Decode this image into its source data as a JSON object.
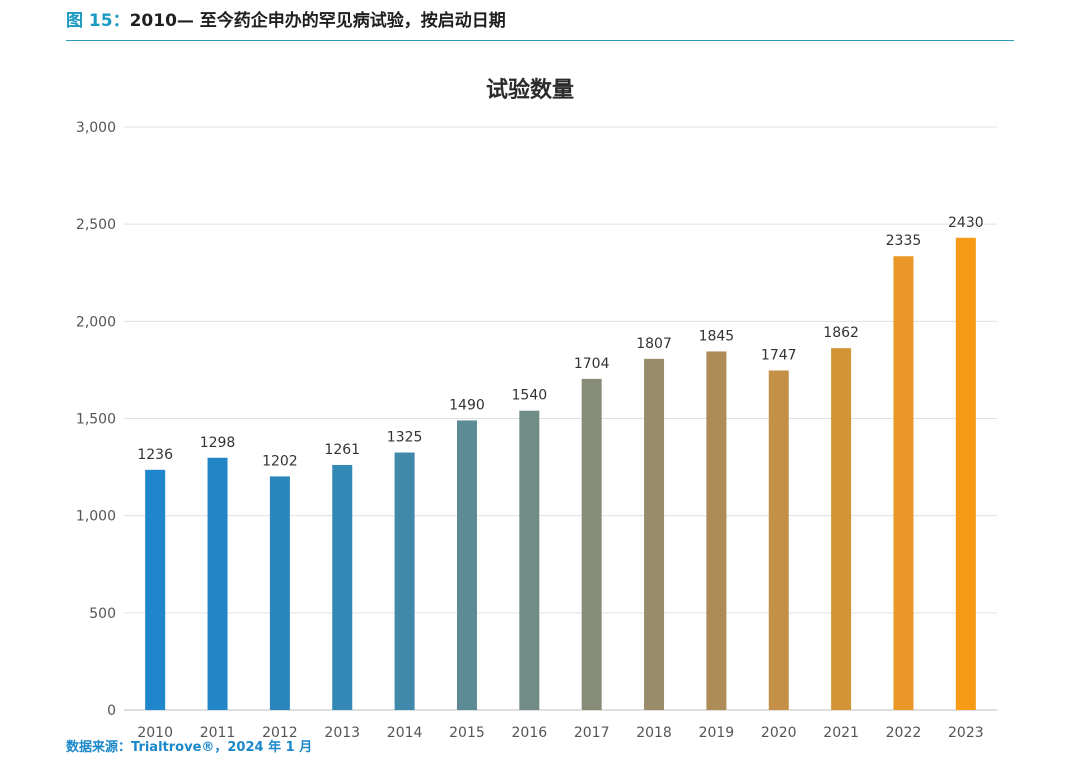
{
  "header": {
    "figure_label": "图 15：",
    "title": "2010— 至今药企申办的罕见病试验，按启动日期"
  },
  "source": "数据来源：Trialtrove®，2024 年 1 月",
  "chart_data": {
    "type": "bar",
    "title": "试验数量",
    "categories": [
      "2010",
      "2011",
      "2012",
      "2013",
      "2014",
      "2015",
      "2016",
      "2017",
      "2018",
      "2019",
      "2020",
      "2021",
      "2022",
      "2023"
    ],
    "values": [
      1236,
      1298,
      1202,
      1261,
      1325,
      1490,
      1540,
      1704,
      1807,
      1845,
      1747,
      1862,
      2335,
      2430
    ],
    "colors": [
      "#1f86cc",
      "#2286c6",
      "#2a87be",
      "#3488b5",
      "#4189aa",
      "#5c8a95",
      "#718b86",
      "#878c78",
      "#998c6a",
      "#ad8c58",
      "#c48f46",
      "#d39436",
      "#e99726",
      "#f79a16"
    ],
    "ylim": [
      0,
      3000
    ],
    "yticks": [
      0,
      500,
      1000,
      1500,
      2000,
      2500,
      3000
    ],
    "ytick_labels": [
      "0",
      "500",
      "1,000",
      "1,500",
      "2,000",
      "2,500",
      "3,000"
    ],
    "xlabel": "",
    "ylabel": "",
    "grid": true,
    "legend": "none"
  }
}
